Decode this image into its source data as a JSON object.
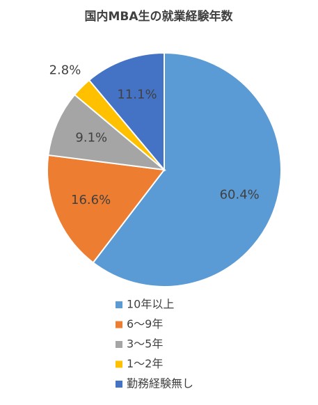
{
  "chart_data": {
    "type": "pie",
    "title": "国内MBA生の就業経験年数",
    "categories": [
      "10年以上",
      "6～9年",
      "3～5年",
      "1～2年",
      "勤務経験無し"
    ],
    "values": [
      60.4,
      16.6,
      9.1,
      2.8,
      11.1
    ],
    "value_labels": [
      "60.4%",
      "16.6%",
      "9.1%",
      "2.8%",
      "11.1%"
    ],
    "colors": [
      "#5b9bd5",
      "#ed7d31",
      "#a5a5a5",
      "#ffc000",
      "#4472c4"
    ],
    "legend": "bottom"
  }
}
